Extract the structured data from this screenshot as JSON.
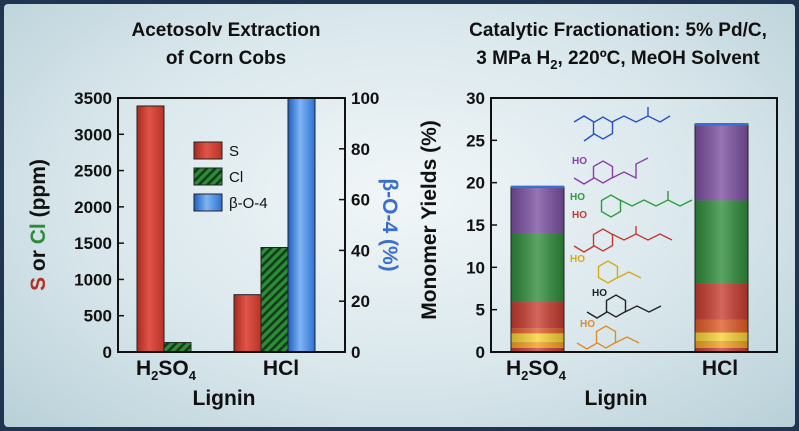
{
  "chart_data": [
    {
      "type": "bar",
      "title": [
        "Acetosolv Extraction",
        "of Corn Cobs"
      ],
      "xlabel": "Lignin",
      "ylabel_left": [
        "S",
        " or ",
        "Cl",
        " (ppm)"
      ],
      "ylabel_right": "β-O-4 (%)",
      "categories": [
        {
          "main": "H",
          "sub": "2",
          "main2": "SO",
          "sub2": "4"
        },
        {
          "main": "HCl"
        }
      ],
      "ylim_left": [
        0,
        3500
      ],
      "ylim_right": [
        0,
        100
      ],
      "left_ticks": [
        "0",
        "500",
        "1000",
        "1500",
        "2000",
        "2500",
        "3000",
        "3500"
      ],
      "right_ticks": [
        "0",
        "20",
        "40",
        "60",
        "80",
        "100"
      ],
      "legend_placement": "center",
      "series": [
        {
          "name": "S",
          "axis": "left",
          "color": "#c63a2e",
          "pattern": "solid",
          "values": [
            3390,
            790
          ]
        },
        {
          "name": "Cl",
          "axis": "left",
          "color": "#2e8b3a",
          "pattern": "hatched",
          "values": [
            130,
            1440
          ]
        },
        {
          "name": "β-O-4",
          "axis": "right",
          "color": "#3a7fd6",
          "pattern": "solid",
          "values": [
            0,
            100
          ]
        }
      ],
      "colors": {
        "S_label": "#b53223",
        "Cl_label": "#2e8b3a",
        "right_label": "#3a6fcf"
      }
    },
    {
      "type": "bar",
      "stacked": true,
      "title": [
        "Catalytic Fractionation: 5% Pd/C,",
        "3 MPa H",
        "2",
        ", 220ºC, MeOH Solvent"
      ],
      "xlabel": "Lignin",
      "ylabel": "Monomer Yields (%)",
      "ylim": [
        0,
        30
      ],
      "ticks": [
        "0",
        "5",
        "10",
        "15",
        "20",
        "25",
        "30"
      ],
      "categories": [
        {
          "main": "H",
          "sub": "2",
          "main2": "SO",
          "sub2": "4"
        },
        {
          "main": "HCl"
        }
      ],
      "segment_colors": [
        "#c63a2e",
        "#f0a020",
        "#f7d234",
        "#e05a24",
        "#c63a2e",
        "#2e8b3a",
        "#7a4fa0"
      ],
      "stacks": [
        [
          0.5,
          0.7,
          1.0,
          0.6,
          3.1,
          8.1,
          5.5
        ],
        [
          0.5,
          0.8,
          1.0,
          1.5,
          4.3,
          9.8,
          9.0
        ]
      ],
      "structure_colors": [
        "#2850c8",
        "#8a3fa8",
        "#2e9a3e",
        "#c63a2e",
        "#d8a818",
        "#222222",
        "#e08a2a"
      ],
      "structure_labels": [
        "HO",
        "HO",
        "HO",
        "HO",
        "HO"
      ]
    }
  ]
}
